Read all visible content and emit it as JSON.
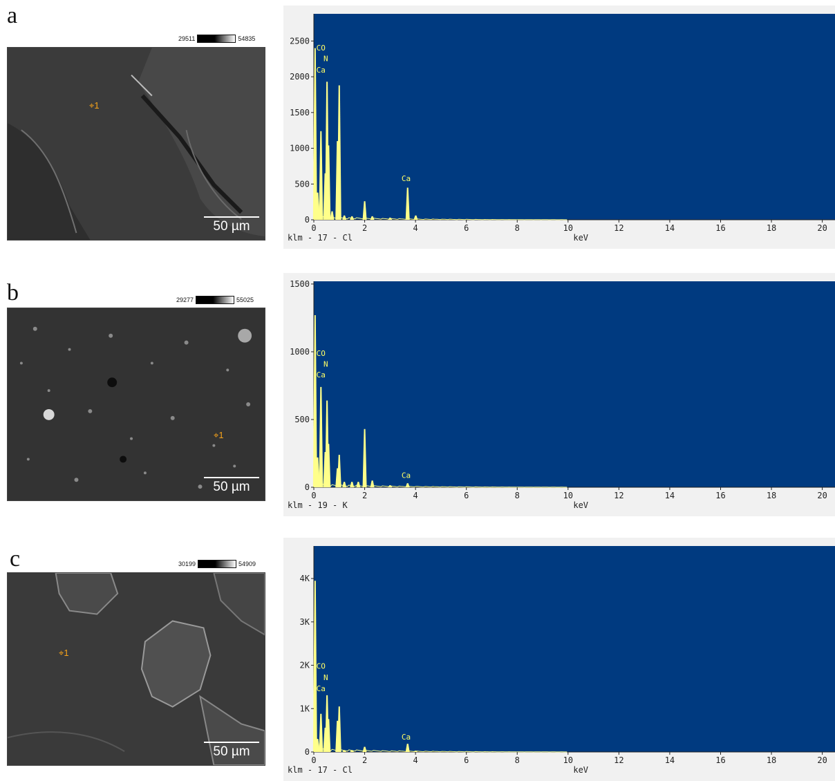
{
  "panels": [
    {
      "letter": "a",
      "scale_label": "50 µm",
      "marker_label": "1",
      "ramp": {
        "low": "29511",
        "high": "54835"
      }
    },
    {
      "letter": "b",
      "scale_label": "50 µm",
      "marker_label": "1",
      "ramp": {
        "low": "29277",
        "high": "55025"
      }
    },
    {
      "letter": "c",
      "scale_label": "50 µm",
      "marker_label": "1",
      "ramp": {
        "low": "30199",
        "high": "54909"
      }
    }
  ],
  "colors": {
    "plot_bg": "#003a80",
    "peak": "#ffff8a",
    "label": "#ffff66",
    "marker": "#f7a31a"
  },
  "chart_data": [
    {
      "type": "line",
      "xlabel": "keV",
      "footer": "klm - 17 - Cl",
      "xlim": [
        0,
        20.5
      ],
      "ylim": [
        0,
        2880
      ],
      "xticks": [
        0,
        2,
        4,
        6,
        8,
        10,
        12,
        14,
        16,
        18,
        20
      ],
      "yticks": [
        {
          "value": 0,
          "label": "0"
        },
        {
          "value": 500,
          "label": "500"
        },
        {
          "value": 1000,
          "label": "1000"
        },
        {
          "value": 1500,
          "label": "1500"
        },
        {
          "value": 2000,
          "label": "2000"
        },
        {
          "value": 2500,
          "label": "2500"
        }
      ],
      "peaks": [
        [
          0.05,
          2400
        ],
        [
          0.28,
          1240
        ],
        [
          0.52,
          1930
        ],
        [
          0.93,
          1100
        ],
        [
          1.0,
          1880
        ],
        [
          2.0,
          260
        ],
        [
          3.69,
          450
        ],
        [
          4.01,
          60
        ],
        [
          0.15,
          380
        ],
        [
          0.45,
          650
        ],
        [
          0.58,
          1040
        ],
        [
          0.72,
          120
        ],
        [
          1.2,
          60
        ],
        [
          1.5,
          50
        ],
        [
          2.3,
          50
        ],
        [
          3.0,
          30
        ]
      ],
      "labels": [
        {
          "text": "CO",
          "x": 0.1,
          "y": 2370
        },
        {
          "text": "N",
          "x": 0.38,
          "y": 2220
        },
        {
          "text": "Ca",
          "x": 0.1,
          "y": 2060
        },
        {
          "text": "Ca",
          "x": 3.45,
          "y": 540
        }
      ]
    },
    {
      "type": "line",
      "xlabel": "keV",
      "footer": "klm - 19 - K",
      "xlim": [
        0,
        20.5
      ],
      "ylim": [
        0,
        1520
      ],
      "xticks": [
        0,
        2,
        4,
        6,
        8,
        10,
        12,
        14,
        16,
        18,
        20
      ],
      "yticks": [
        {
          "value": 0,
          "label": "0"
        },
        {
          "value": 500,
          "label": "500"
        },
        {
          "value": 1000,
          "label": "1000"
        },
        {
          "value": 1500,
          "label": "1500"
        }
      ],
      "peaks": [
        [
          0.05,
          1270
        ],
        [
          0.28,
          740
        ],
        [
          0.52,
          640
        ],
        [
          0.93,
          140
        ],
        [
          1.0,
          240
        ],
        [
          2.0,
          430
        ],
        [
          2.3,
          50
        ],
        [
          3.69,
          30
        ],
        [
          0.15,
          220
        ],
        [
          0.45,
          260
        ],
        [
          0.58,
          320
        ],
        [
          1.2,
          40
        ],
        [
          1.5,
          40
        ],
        [
          1.75,
          40
        ],
        [
          3.0,
          15
        ]
      ],
      "labels": [
        {
          "text": "CO",
          "x": 0.1,
          "y": 970
        },
        {
          "text": "N",
          "x": 0.38,
          "y": 890
        },
        {
          "text": "Ca",
          "x": 0.1,
          "y": 810
        },
        {
          "text": "Ca",
          "x": 3.45,
          "y": 70
        }
      ]
    },
    {
      "type": "line",
      "xlabel": "keV",
      "footer": "klm - 17 - Cl",
      "xlim": [
        0,
        20.5
      ],
      "ylim": [
        0,
        4750
      ],
      "xticks": [
        0,
        2,
        4,
        6,
        8,
        10,
        12,
        14,
        16,
        18,
        20
      ],
      "yticks": [
        {
          "value": 0,
          "label": "0"
        },
        {
          "value": 1000,
          "label": "1K"
        },
        {
          "value": 2000,
          "label": "2K"
        },
        {
          "value": 3000,
          "label": "3K"
        },
        {
          "value": 4000,
          "label": "4K"
        }
      ],
      "peaks": [
        [
          0.05,
          3950
        ],
        [
          0.28,
          880
        ],
        [
          0.52,
          1310
        ],
        [
          0.93,
          720
        ],
        [
          1.0,
          1050
        ],
        [
          2.0,
          120
        ],
        [
          3.69,
          190
        ],
        [
          0.15,
          300
        ],
        [
          0.45,
          560
        ],
        [
          0.58,
          760
        ],
        [
          1.2,
          40
        ],
        [
          1.5,
          40
        ],
        [
          4.0,
          30
        ]
      ],
      "labels": [
        {
          "text": "CO",
          "x": 0.1,
          "y": 1920
        },
        {
          "text": "N",
          "x": 0.38,
          "y": 1660
        },
        {
          "text": "Ca",
          "x": 0.1,
          "y": 1400
        },
        {
          "text": "Ca",
          "x": 3.45,
          "y": 290
        }
      ]
    }
  ]
}
